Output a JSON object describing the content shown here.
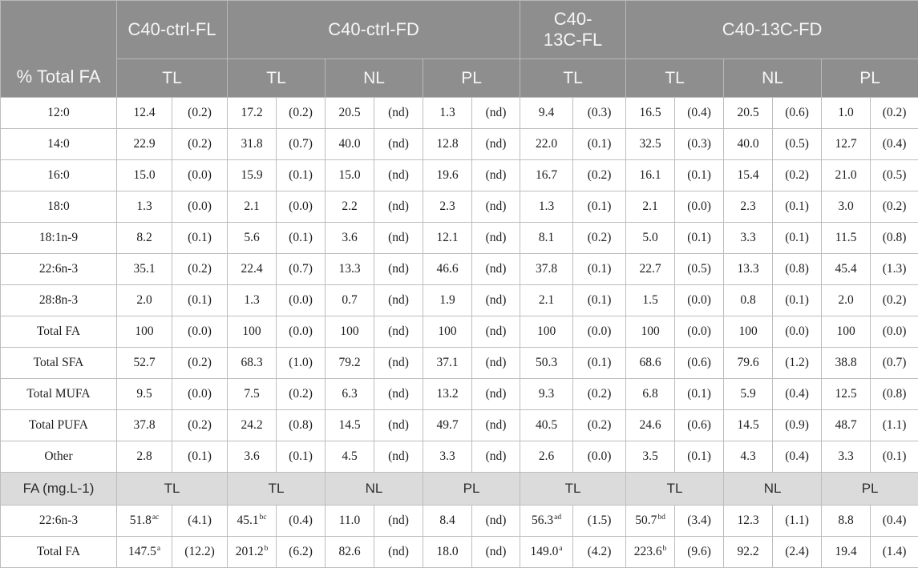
{
  "colors": {
    "header_bg": "#8e8e8e",
    "header_text": "#f6f6f6",
    "subheader_bg": "#dbdbdb",
    "body_text": "#1d1d1d",
    "grid_border": "#bdbdbd"
  },
  "header": {
    "corner_label": "% Total FA",
    "groups": [
      {
        "label": "C40-ctrl-FL"
      },
      {
        "label": "C40-ctrl-FD"
      },
      {
        "label": "C40-13C-FL"
      },
      {
        "label": "C40-13C-FD"
      }
    ],
    "fraction_labels": [
      "TL",
      "TL",
      "NL",
      "PL",
      "TL",
      "TL",
      "NL",
      "PL"
    ]
  },
  "section1": {
    "rows": [
      {
        "label": "12:0",
        "cells": [
          {
            "v": "12.4",
            "sd": "(0.2)"
          },
          {
            "v": "17.2",
            "sd": "(0.2)"
          },
          {
            "v": "20.5",
            "sd": "(nd)"
          },
          {
            "v": "1.3",
            "sd": "(nd)"
          },
          {
            "v": "9.4",
            "sd": "(0.3)"
          },
          {
            "v": "16.5",
            "sd": "(0.4)"
          },
          {
            "v": "20.5",
            "sd": "(0.6)"
          },
          {
            "v": "1.0",
            "sd": "(0.2)"
          }
        ]
      },
      {
        "label": "14:0",
        "cells": [
          {
            "v": "22.9",
            "sd": "(0.2)"
          },
          {
            "v": "31.8",
            "sd": "(0.7)"
          },
          {
            "v": "40.0",
            "sd": "(nd)"
          },
          {
            "v": "12.8",
            "sd": "(nd)"
          },
          {
            "v": "22.0",
            "sd": "(0.1)"
          },
          {
            "v": "32.5",
            "sd": "(0.3)"
          },
          {
            "v": "40.0",
            "sd": "(0.5)"
          },
          {
            "v": "12.7",
            "sd": "(0.4)"
          }
        ]
      },
      {
        "label": "16:0",
        "cells": [
          {
            "v": "15.0",
            "sd": "(0.0)"
          },
          {
            "v": "15.9",
            "sd": "(0.1)"
          },
          {
            "v": "15.0",
            "sd": "(nd)"
          },
          {
            "v": "19.6",
            "sd": "(nd)"
          },
          {
            "v": "16.7",
            "sd": "(0.2)"
          },
          {
            "v": "16.1",
            "sd": "(0.1)"
          },
          {
            "v": "15.4",
            "sd": "(0.2)"
          },
          {
            "v": "21.0",
            "sd": "(0.5)"
          }
        ]
      },
      {
        "label": "18:0",
        "cells": [
          {
            "v": "1.3",
            "sd": "(0.0)"
          },
          {
            "v": "2.1",
            "sd": "(0.0)"
          },
          {
            "v": "2.2",
            "sd": "(nd)"
          },
          {
            "v": "2.3",
            "sd": "(nd)"
          },
          {
            "v": "1.3",
            "sd": "(0.1)"
          },
          {
            "v": "2.1",
            "sd": "(0.0)"
          },
          {
            "v": "2.3",
            "sd": "(0.1)"
          },
          {
            "v": "3.0",
            "sd": "(0.2)"
          }
        ]
      },
      {
        "label": "18:1n-9",
        "cells": [
          {
            "v": "8.2",
            "sd": "(0.1)"
          },
          {
            "v": "5.6",
            "sd": "(0.1)"
          },
          {
            "v": "3.6",
            "sd": "(nd)"
          },
          {
            "v": "12.1",
            "sd": "(nd)"
          },
          {
            "v": "8.1",
            "sd": "(0.2)"
          },
          {
            "v": "5.0",
            "sd": "(0.1)"
          },
          {
            "v": "3.3",
            "sd": "(0.1)"
          },
          {
            "v": "11.5",
            "sd": "(0.8)"
          }
        ]
      },
      {
        "label": "22:6n-3",
        "cells": [
          {
            "v": "35.1",
            "sd": "(0.2)"
          },
          {
            "v": "22.4",
            "sd": "(0.7)"
          },
          {
            "v": "13.3",
            "sd": "(nd)"
          },
          {
            "v": "46.6",
            "sd": "(nd)"
          },
          {
            "v": "37.8",
            "sd": "(0.1)"
          },
          {
            "v": "22.7",
            "sd": "(0.5)"
          },
          {
            "v": "13.3",
            "sd": "(0.8)"
          },
          {
            "v": "45.4",
            "sd": "(1.3)"
          }
        ]
      },
      {
        "label": "28:8n-3",
        "cells": [
          {
            "v": "2.0",
            "sd": "(0.1)"
          },
          {
            "v": "1.3",
            "sd": "(0.0)"
          },
          {
            "v": "0.7",
            "sd": "(nd)"
          },
          {
            "v": "1.9",
            "sd": "(nd)"
          },
          {
            "v": "2.1",
            "sd": "(0.1)"
          },
          {
            "v": "1.5",
            "sd": "(0.0)"
          },
          {
            "v": "0.8",
            "sd": "(0.1)"
          },
          {
            "v": "2.0",
            "sd": "(0.2)"
          }
        ]
      },
      {
        "label": "Total FA",
        "cells": [
          {
            "v": "100",
            "sd": "(0.0)"
          },
          {
            "v": "100",
            "sd": "(0.0)"
          },
          {
            "v": "100",
            "sd": "(nd)"
          },
          {
            "v": "100",
            "sd": "(nd)"
          },
          {
            "v": "100",
            "sd": "(0.0)"
          },
          {
            "v": "100",
            "sd": "(0.0)"
          },
          {
            "v": "100",
            "sd": "(0.0)"
          },
          {
            "v": "100",
            "sd": "(0.0)"
          }
        ]
      },
      {
        "label": "Total SFA",
        "cells": [
          {
            "v": "52.7",
            "sd": "(0.2)"
          },
          {
            "v": "68.3",
            "sd": "(1.0)"
          },
          {
            "v": "79.2",
            "sd": "(nd)"
          },
          {
            "v": "37.1",
            "sd": "(nd)"
          },
          {
            "v": "50.3",
            "sd": "(0.1)"
          },
          {
            "v": "68.6",
            "sd": "(0.6)"
          },
          {
            "v": "79.6",
            "sd": "(1.2)"
          },
          {
            "v": "38.8",
            "sd": "(0.7)"
          }
        ]
      },
      {
        "label": "Total MUFA",
        "cells": [
          {
            "v": "9.5",
            "sd": "(0.0)"
          },
          {
            "v": "7.5",
            "sd": "(0.2)"
          },
          {
            "v": "6.3",
            "sd": "(nd)"
          },
          {
            "v": "13.2",
            "sd": "(nd)"
          },
          {
            "v": "9.3",
            "sd": "(0.2)"
          },
          {
            "v": "6.8",
            "sd": "(0.1)"
          },
          {
            "v": "5.9",
            "sd": "(0.4)"
          },
          {
            "v": "12.5",
            "sd": "(0.8)"
          }
        ]
      },
      {
        "label": "Total PUFA",
        "cells": [
          {
            "v": "37.8",
            "sd": "(0.2)"
          },
          {
            "v": "24.2",
            "sd": "(0.8)"
          },
          {
            "v": "14.5",
            "sd": "(nd)"
          },
          {
            "v": "49.7",
            "sd": "(nd)"
          },
          {
            "v": "40.5",
            "sd": "(0.2)"
          },
          {
            "v": "24.6",
            "sd": "(0.6)"
          },
          {
            "v": "14.5",
            "sd": "(0.9)"
          },
          {
            "v": "48.7",
            "sd": "(1.1)"
          }
        ]
      },
      {
        "label": "Other",
        "cells": [
          {
            "v": "2.8",
            "sd": "(0.1)"
          },
          {
            "v": "3.6",
            "sd": "(0.1)"
          },
          {
            "v": "4.5",
            "sd": "(nd)"
          },
          {
            "v": "3.3",
            "sd": "(nd)"
          },
          {
            "v": "2.6",
            "sd": "(0.0)"
          },
          {
            "v": "3.5",
            "sd": "(0.1)"
          },
          {
            "v": "4.3",
            "sd": "(0.4)"
          },
          {
            "v": "3.3",
            "sd": "(0.1)"
          }
        ]
      }
    ]
  },
  "section2": {
    "label": "FA (mg.L-1)",
    "fraction_labels": [
      "TL",
      "TL",
      "NL",
      "PL",
      "TL",
      "TL",
      "NL",
      "PL"
    ],
    "rows": [
      {
        "label": "22:6n-3",
        "cells": [
          {
            "v": "51.8",
            "sup": "ac",
            "sd": "(4.1)"
          },
          {
            "v": "45.1",
            "sup": "bc",
            "sd": "(0.4)"
          },
          {
            "v": "11.0",
            "sup": "",
            "sd": "(nd)"
          },
          {
            "v": "8.4",
            "sup": "",
            "sd": "(nd)"
          },
          {
            "v": "56.3",
            "sup": "ad",
            "sd": "(1.5)"
          },
          {
            "v": "50.7",
            "sup": "bd",
            "sd": "(3.4)"
          },
          {
            "v": "12.3",
            "sup": "",
            "sd": "(1.1)"
          },
          {
            "v": "8.8",
            "sup": "",
            "sd": "(0.4)"
          }
        ]
      },
      {
        "label": "Total FA",
        "cells": [
          {
            "v": "147.5",
            "sup": "a",
            "sd": "(12.2)"
          },
          {
            "v": "201.2",
            "sup": "b",
            "sd": "(6.2)"
          },
          {
            "v": "82.6",
            "sup": "",
            "sd": "(nd)"
          },
          {
            "v": "18.0",
            "sup": "",
            "sd": "(nd)"
          },
          {
            "v": "149.0",
            "sup": "a",
            "sd": "(4.2)"
          },
          {
            "v": "223.6",
            "sup": "b",
            "sd": "(9.6)"
          },
          {
            "v": "92.2",
            "sup": "",
            "sd": "(2.4)"
          },
          {
            "v": "19.4",
            "sup": "",
            "sd": "(1.4)"
          }
        ]
      }
    ]
  }
}
